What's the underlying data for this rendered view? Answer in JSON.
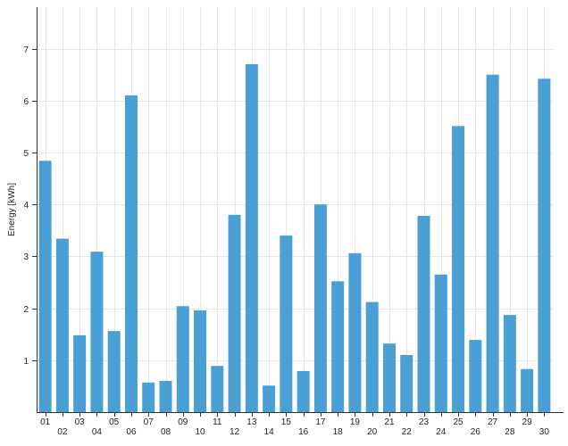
{
  "chart_data": {
    "type": "bar",
    "ylabel": "Energy [kWh]",
    "xlabel": "",
    "title": "",
    "ylim": [
      0,
      7.8
    ],
    "yticks": [
      1,
      2,
      3,
      4,
      5,
      6,
      7
    ],
    "grid": true,
    "bar_color": "#4a9fd5",
    "categories": [
      "01",
      "02",
      "03",
      "04",
      "05",
      "06",
      "07",
      "08",
      "09",
      "10",
      "11",
      "12",
      "13",
      "14",
      "15",
      "16",
      "17",
      "18",
      "19",
      "20",
      "21",
      "22",
      "23",
      "24",
      "25",
      "26",
      "27",
      "28",
      "29",
      "30"
    ],
    "values": [
      4.84,
      3.34,
      1.48,
      3.09,
      1.56,
      6.1,
      0.57,
      0.6,
      2.04,
      1.96,
      0.89,
      3.8,
      6.7,
      0.51,
      3.4,
      0.79,
      4.0,
      2.52,
      3.06,
      2.12,
      1.32,
      1.1,
      3.78,
      2.65,
      5.51,
      1.39,
      6.5,
      1.87,
      0.83,
      6.42
    ]
  }
}
